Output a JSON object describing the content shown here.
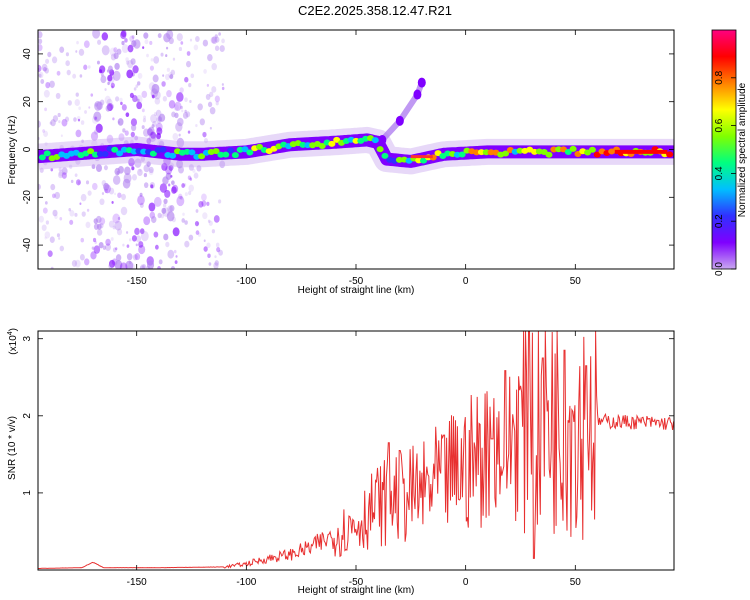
{
  "title": "C2E2.2025.358.12.47.R21",
  "colors": {
    "snr_line": "#e83030",
    "axis": "#000000",
    "scatter": "#8a2be2"
  },
  "chart_data": [
    {
      "type": "heatmap",
      "name": "spectrogram",
      "xlabel": "Height of straight line (km)",
      "ylabel": "Frequency (Hz)",
      "xlim": [
        -195,
        95
      ],
      "ylim": [
        -50,
        50
      ],
      "xticks": [
        -150,
        -100,
        -50,
        0,
        50
      ],
      "yticks": [
        -40,
        -20,
        0,
        20,
        40
      ],
      "ridge": [
        {
          "x": -195,
          "y": -3
        },
        {
          "x": -180,
          "y": -2
        },
        {
          "x": -165,
          "y": -1
        },
        {
          "x": -150,
          "y": 0
        },
        {
          "x": -130,
          "y": -2
        },
        {
          "x": -120,
          "y": -2
        },
        {
          "x": -100,
          "y": -1
        },
        {
          "x": -80,
          "y": 2
        },
        {
          "x": -60,
          "y": 3
        },
        {
          "x": -45,
          "y": 4
        },
        {
          "x": -40,
          "y": 3
        },
        {
          "x": -36,
          "y": -4
        },
        {
          "x": -25,
          "y": -5
        },
        {
          "x": -10,
          "y": -2
        },
        {
          "x": 10,
          "y": -1
        },
        {
          "x": 30,
          "y": -1
        },
        {
          "x": 50,
          "y": -1
        },
        {
          "x": 70,
          "y": -1
        },
        {
          "x": 95,
          "y": -1
        }
      ],
      "branch": [
        {
          "x": -38,
          "y": 4
        },
        {
          "x": -30,
          "y": 12
        },
        {
          "x": -22,
          "y": 23
        },
        {
          "x": -20,
          "y": 28
        }
      ],
      "scatter_region_x": [
        -195,
        -110
      ],
      "colorbar": {
        "label": "Normalized spectral amplitude",
        "range": [
          0,
          1
        ],
        "ticks": [
          0.0,
          0.2,
          0.4,
          0.6,
          0.8
        ],
        "tick_labels": [
          "0.0",
          "0.2",
          "0.4",
          "0.6",
          "0.8"
        ],
        "stops": [
          "#c9a8f0",
          "#7f00ff",
          "#3030ff",
          "#00bfff",
          "#00ff80",
          "#80ff00",
          "#ffff00",
          "#ff8000",
          "#ff0000",
          "#ff0080"
        ]
      }
    },
    {
      "type": "line",
      "name": "snr",
      "xlabel": "Height of straight line (km)",
      "ylabel": "SNR (10 * v/v)",
      "multiplier": "(x10",
      "multiplier_exp": "4",
      "multiplier_close": ")",
      "xlim": [
        -195,
        95
      ],
      "ylim": [
        0,
        3.1
      ],
      "xticks": [
        -150,
        -100,
        -50,
        0,
        50
      ],
      "yticks": [
        1,
        2,
        3
      ],
      "envelope": [
        {
          "x": -195,
          "y": 0.02
        },
        {
          "x": -175,
          "y": 0.03
        },
        {
          "x": -170,
          "y": 0.1
        },
        {
          "x": -165,
          "y": 0.03
        },
        {
          "x": -140,
          "y": 0.03
        },
        {
          "x": -110,
          "y": 0.04
        },
        {
          "x": -100,
          "y": 0.08
        },
        {
          "x": -90,
          "y": 0.15
        },
        {
          "x": -80,
          "y": 0.2
        },
        {
          "x": -70,
          "y": 0.3
        },
        {
          "x": -60,
          "y": 0.45
        },
        {
          "x": -50,
          "y": 0.6
        },
        {
          "x": -40,
          "y": 0.85
        },
        {
          "x": -30,
          "y": 0.95
        },
        {
          "x": -20,
          "y": 1.0
        },
        {
          "x": -10,
          "y": 1.2
        },
        {
          "x": 0,
          "y": 1.35
        },
        {
          "x": 10,
          "y": 1.55
        },
        {
          "x": 20,
          "y": 1.7
        },
        {
          "x": 28,
          "y": 2.0
        },
        {
          "x": 40,
          "y": 2.05
        },
        {
          "x": 50,
          "y": 1.95
        },
        {
          "x": 60,
          "y": 1.93
        },
        {
          "x": 75,
          "y": 1.92
        },
        {
          "x": 95,
          "y": 1.9
        }
      ],
      "peaks": [
        {
          "x": -35,
          "y": 1.65
        },
        {
          "x": -30,
          "y": 1.55
        },
        {
          "x": -10,
          "y": 1.75
        },
        {
          "x": 12,
          "y": 1.7
        },
        {
          "x": 29,
          "y": 3.1
        },
        {
          "x": 31,
          "y": 0.15
        },
        {
          "x": 35,
          "y": 2.75
        },
        {
          "x": 45,
          "y": 2.85
        },
        {
          "x": 55,
          "y": 2.65
        }
      ]
    }
  ]
}
